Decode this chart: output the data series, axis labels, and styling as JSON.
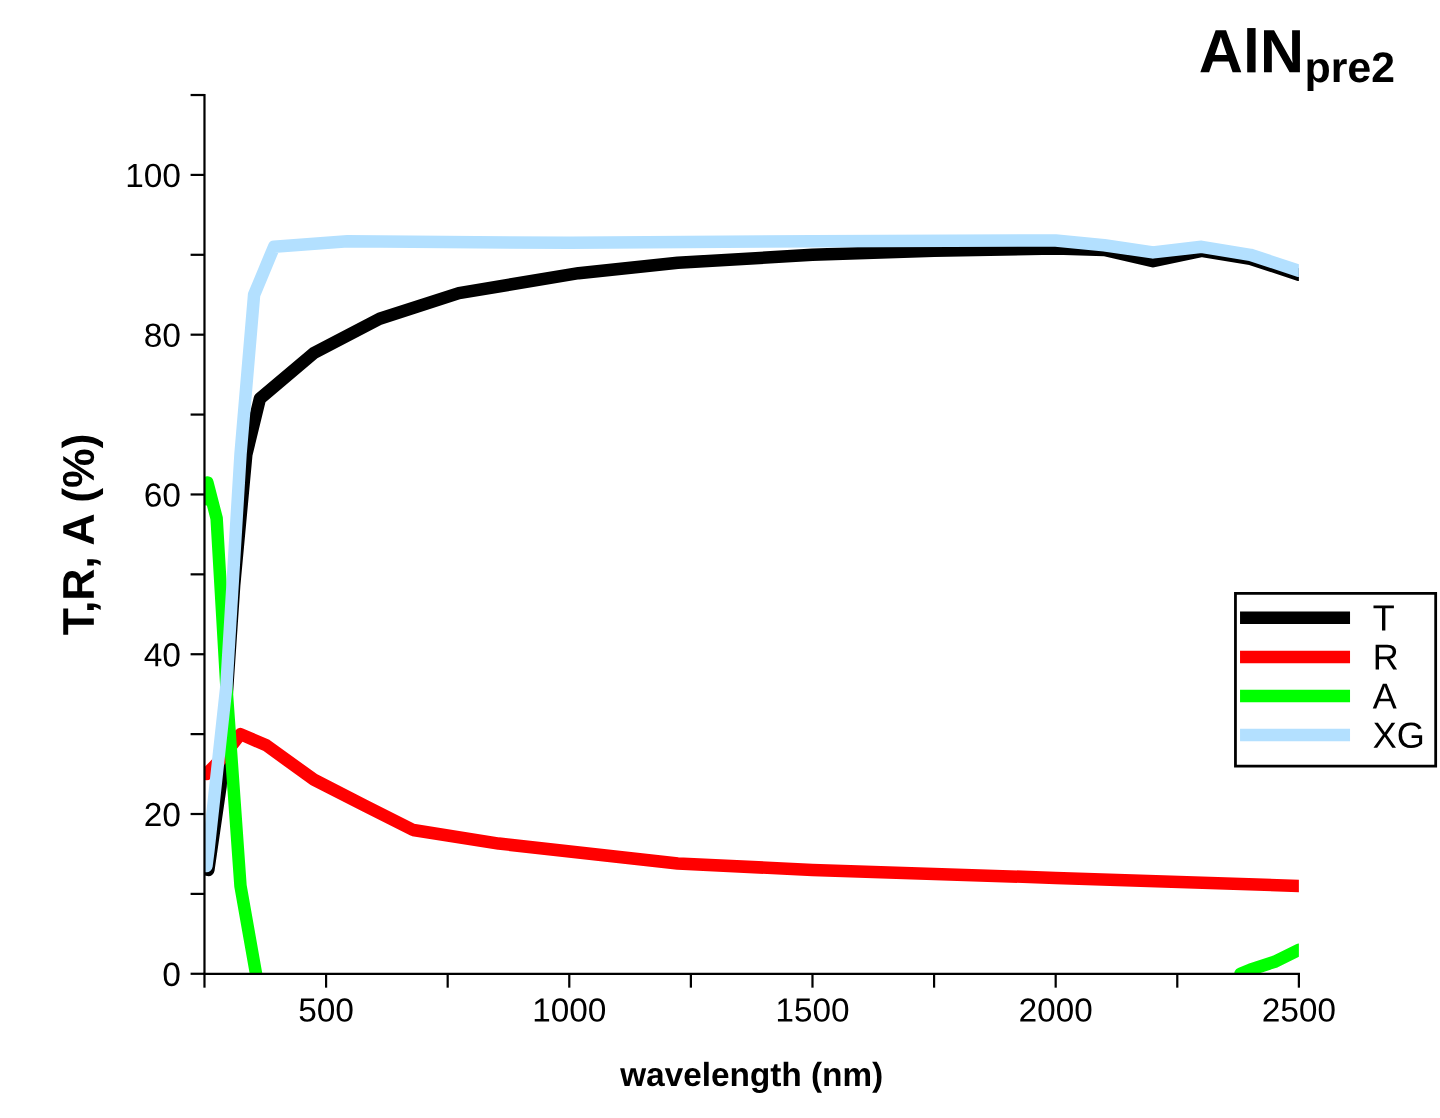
{
  "chart_data": {
    "type": "line",
    "title": "AlN$_{pre2}$",
    "xlabel": "wavelength (nm)",
    "ylabel": "T,R, A (%)",
    "xlim": [
      250,
      2500
    ],
    "ylim": [
      0,
      110
    ],
    "xticks": [
      {
        "value": 250,
        "label": null
      },
      500,
      {
        "value": 750,
        "label": null
      },
      1000,
      {
        "value": 1250,
        "label": null
      },
      1500,
      {
        "value": 1750,
        "label": null
      },
      2000,
      {
        "value": 2250,
        "label": null
      },
      2500
    ],
    "yticks": [
      0,
      {
        "value": 10,
        "label": null
      },
      20,
      {
        "value": 30,
        "label": null
      },
      40,
      {
        "value": 50,
        "label": null
      },
      60,
      {
        "value": 70,
        "label": null
      },
      80,
      {
        "value": 90,
        "label": null
      },
      100,
      {
        "value": 110,
        "label": null
      }
    ],
    "grid": false,
    "legend": "right",
    "marker": "none",
    "line_style": "solid",
    "series": [
      {
        "name": "T",
        "color": "#000000",
        "x": [
          258,
          283,
          311,
          336,
          364,
          475,
          610,
          773,
          1019,
          1223,
          1500,
          1750,
          2000,
          2100,
          2200,
          2300,
          2400,
          2500
        ],
        "values": [
          13,
          23.5,
          48.6,
          65,
          72,
          77.7,
          82,
          85.2,
          87.7,
          89,
          90,
          90.5,
          90.8,
          90.6,
          89.2,
          90.5,
          89.5,
          87.5
        ]
      },
      {
        "name": "R",
        "color": "#ff0000",
        "x": [
          254,
          283,
          324,
          377,
          475,
          581,
          679,
          855,
          1223,
          1500,
          2000,
          2500
        ],
        "values": [
          25,
          26.8,
          30,
          28.6,
          24.3,
          21,
          18,
          16.3,
          13.8,
          13,
          12,
          11
        ]
      },
      {
        "name": "A",
        "color": "#00ff00",
        "x": [
          254,
          256,
          275,
          295,
          324,
          356,
          370,
          2380,
          2400,
          2450,
          2500
        ],
        "values": [
          59.4,
          61.5,
          57,
          36,
          11,
          0,
          null,
          0,
          0.5,
          1.5,
          3
        ]
      },
      {
        "name": "XG",
        "color": "#b3e0ff",
        "x": [
          254,
          258,
          295,
          324,
          352,
          393,
          544,
          1000,
          1500,
          2000,
          2100,
          2200,
          2300,
          2400,
          2500
        ],
        "values": [
          13.5,
          15.4,
          36,
          65,
          85,
          91,
          91.7,
          91.5,
          91.7,
          91.8,
          91.2,
          90.3,
          91,
          90,
          88
        ]
      }
    ]
  }
}
